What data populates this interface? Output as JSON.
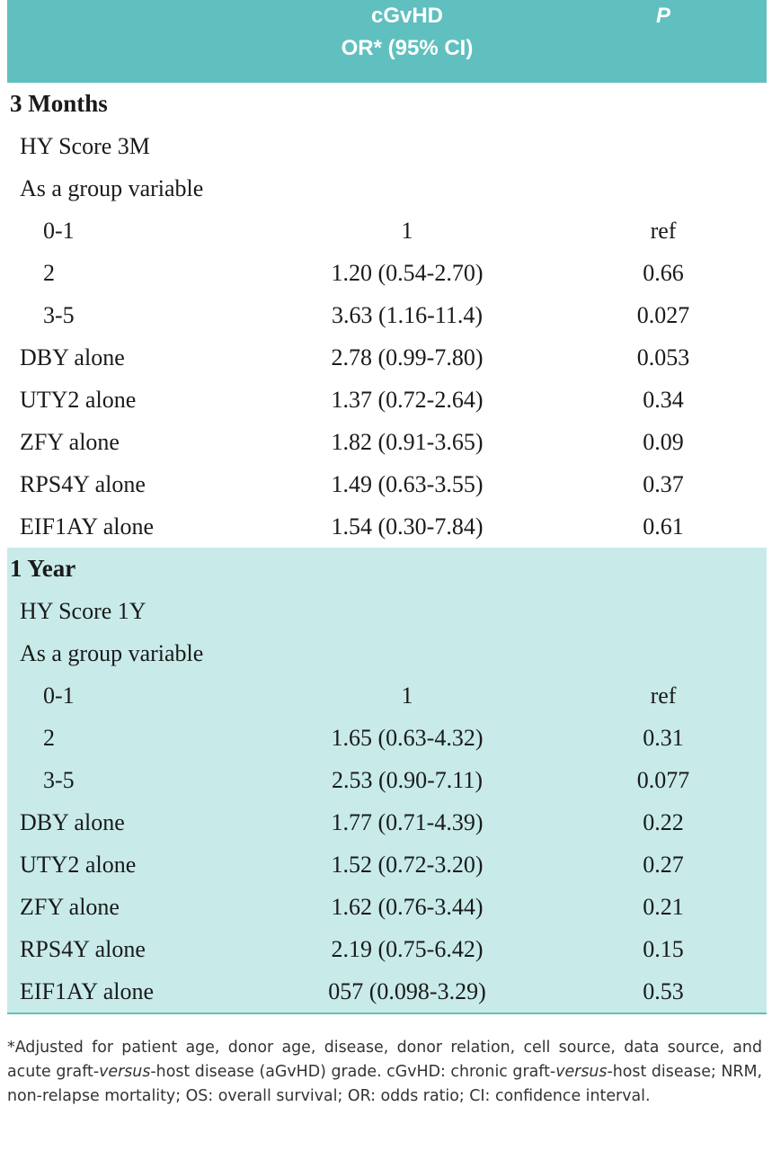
{
  "header": {
    "col1_line1": "cGvHD",
    "col1_line2": "OR* (95% CI)",
    "col2": "P"
  },
  "sections": [
    {
      "title": "3 Months",
      "rows": [
        {
          "label": "HY Score 3M",
          "or": "",
          "p": ""
        },
        {
          "label": "As a group variable",
          "or": "",
          "p": ""
        },
        {
          "label": "0-1",
          "or": "1",
          "p": "ref"
        },
        {
          "label": "2",
          "or": "1.20 (0.54-2.70)",
          "p": "0.66"
        },
        {
          "label": "3-5",
          "or": "3.63 (1.16-11.4)",
          "p": "0.027"
        },
        {
          "label": "DBY alone",
          "or": "2.78 (0.99-7.80)",
          "p": "0.053"
        },
        {
          "label": "UTY2 alone",
          "or": "1.37 (0.72-2.64)",
          "p": "0.34"
        },
        {
          "label": "ZFY alone",
          "or": "1.82 (0.91-3.65)",
          "p": "0.09"
        },
        {
          "label": "RPS4Y alone",
          "or": "1.49 (0.63-3.55)",
          "p": "0.37"
        },
        {
          "label": "EIF1AY alone",
          "or": "1.54 (0.30-7.84)",
          "p": "0.61"
        }
      ]
    },
    {
      "title": "1 Year",
      "rows": [
        {
          "label": "HY Score 1Y",
          "or": "",
          "p": ""
        },
        {
          "label": "As a group variable",
          "or": "",
          "p": ""
        },
        {
          "label": "0-1",
          "or": "1",
          "p": "ref"
        },
        {
          "label": "2",
          "or": "1.65 (0.63-4.32)",
          "p": "0.31"
        },
        {
          "label": "3-5",
          "or": "2.53 (0.90-7.11)",
          "p": "0.077"
        },
        {
          "label": "DBY alone",
          "or": "1.77 (0.71-4.39)",
          "p": "0.22"
        },
        {
          "label": "UTY2 alone",
          "or": "1.52 (0.72-3.20)",
          "p": "0.27"
        },
        {
          "label": "ZFY alone",
          "or": "1.62 (0.76-3.44)",
          "p": "0.21"
        },
        {
          "label": "RPS4Y alone",
          "or": "2.19 (0.75-6.42)",
          "p": "0.15"
        },
        {
          "label": "EIF1AY alone",
          "or": "057 (0.098-3.29)",
          "p": "0.53"
        }
      ]
    }
  ],
  "footnote": {
    "part1": "*Adjusted for patient age, donor age, disease, donor relation, cell source, data source, and acute graft-",
    "italic1": "versus",
    "part2": "-host disease (aGvHD) grade. cGvHD: chronic graft-",
    "italic2": "versus",
    "part3": "-host disease; NRM, non-relapse mortality; OS: overall survival; OR: odds ratio; CI: confidence interval."
  },
  "colors": {
    "header_bg": "#5fc0bf",
    "alt_section_bg": "#c8ebea",
    "header_text": "#ffffff"
  }
}
